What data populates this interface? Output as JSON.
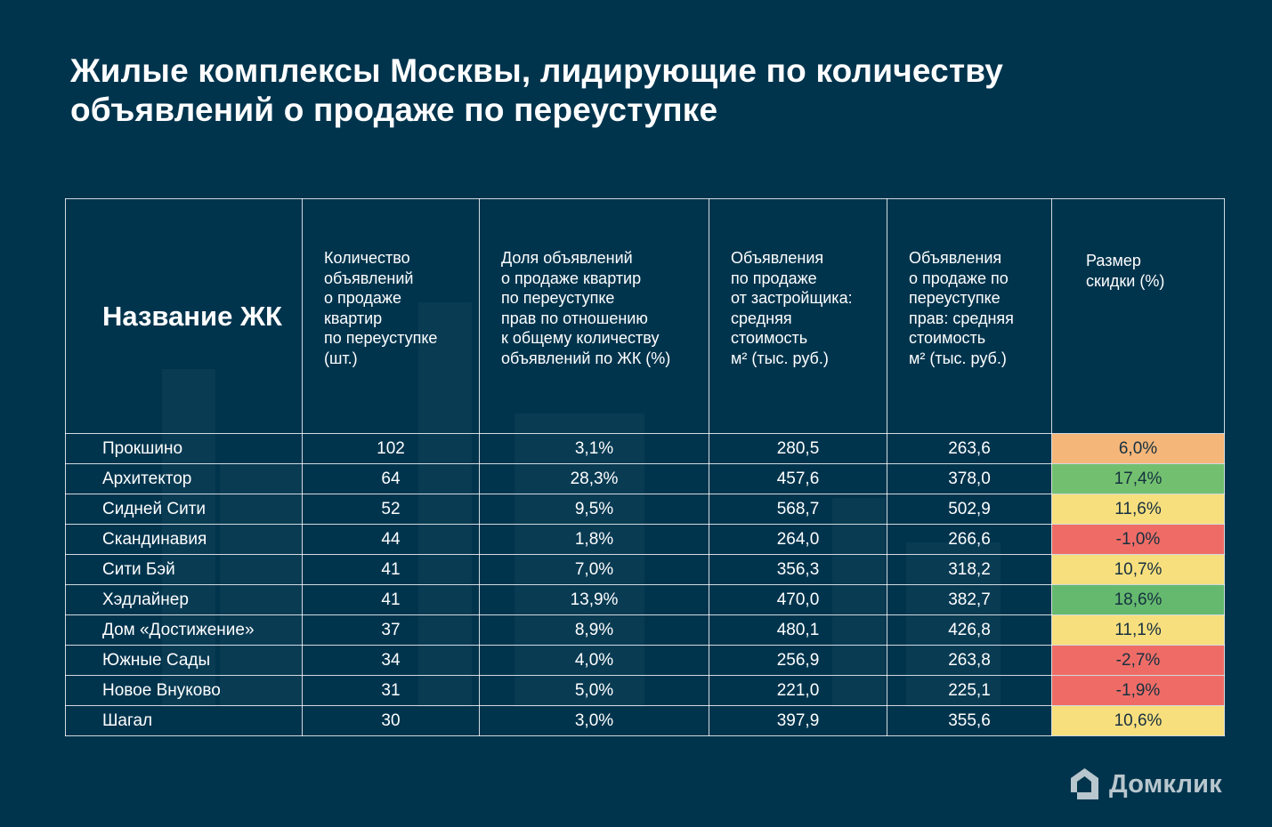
{
  "title": "Жилые комплексы Москвы, лидирующие по количеству объявлений о продаже по переуступке",
  "table": {
    "headers": {
      "name": "Название ЖК",
      "listings": "Количество\nобъявлений\nо продаже\nквартир\nпо переуступке\n(шт.)",
      "share": "Доля объявлений\nо продаже квартир\nпо переуступке\nправ по отношению\nк общему количеству\nобъявлений по ЖК (%)",
      "developer_price": "Объявления\nпо продаже\nот застройщика:\nсредняя\nстоимость\nм² (тыс. руб.)",
      "assignment_price": "Объявления\nо продаже по\nпереуступке\nправ: средняя\nстоимость\nм² (тыс. руб.)",
      "discount": "Размер\nскидки (%)"
    },
    "rows": [
      {
        "name": "Прокшино",
        "listings": "102",
        "share": "3,1%",
        "developer_price": "280,5",
        "assignment_price": "263,6",
        "discount": "6,0%",
        "discount_color": "#f5b679"
      },
      {
        "name": "Архитектор",
        "listings": "64",
        "share": "28,3%",
        "developer_price": "457,6",
        "assignment_price": "378,0",
        "discount": "17,4%",
        "discount_color": "#72c06f"
      },
      {
        "name": "Сидней Сити",
        "listings": "52",
        "share": "9,5%",
        "developer_price": "568,7",
        "assignment_price": "502,9",
        "discount": "11,6%",
        "discount_color": "#f8df7d"
      },
      {
        "name": "Скандинавия",
        "listings": "44",
        "share": "1,8%",
        "developer_price": "264,0",
        "assignment_price": "266,6",
        "discount": "-1,0%",
        "discount_color": "#ef6c66"
      },
      {
        "name": "Сити Бэй",
        "listings": "41",
        "share": "7,0%",
        "developer_price": "356,3",
        "assignment_price": "318,2",
        "discount": "10,7%",
        "discount_color": "#f8df7d"
      },
      {
        "name": "Хэдлайнер",
        "listings": "41",
        "share": "13,9%",
        "developer_price": "470,0",
        "assignment_price": "382,7",
        "discount": "18,6%",
        "discount_color": "#64b96e"
      },
      {
        "name": "Дом «Достижение»",
        "listings": "37",
        "share": "8,9%",
        "developer_price": "480,1",
        "assignment_price": "426,8",
        "discount": "11,1%",
        "discount_color": "#f8df7d"
      },
      {
        "name": "Южные Сады",
        "listings": "34",
        "share": "4,0%",
        "developer_price": "256,9",
        "assignment_price": "263,8",
        "discount": "-2,7%",
        "discount_color": "#ef6c66"
      },
      {
        "name": "Новое Внуково",
        "listings": "31",
        "share": "5,0%",
        "developer_price": "221,0",
        "assignment_price": "225,1",
        "discount": "-1,9%",
        "discount_color": "#ef6c66"
      },
      {
        "name": "Шагал",
        "listings": "30",
        "share": "3,0%",
        "developer_price": "397,9",
        "assignment_price": "355,6",
        "discount": "10,6%",
        "discount_color": "#f8df7d"
      }
    ]
  },
  "chart_data": {
    "type": "table",
    "title": "Жилые комплексы Москвы, лидирующие по количеству объявлений о продаже по переуступке",
    "columns": [
      "Название ЖК",
      "Количество объявлений о продаже квартир по переуступке (шт.)",
      "Доля объявлений о продаже квартир по переуступке прав по отношению к общему количеству объявлений по ЖК (%)",
      "Объявления по продаже от застройщика: средняя стоимость м² (тыс. руб.)",
      "Объявления о продаже по переуступке прав: средняя стоимость м² (тыс. руб.)",
      "Размер скидки (%)"
    ],
    "rows": [
      [
        "Прокшино",
        102,
        3.1,
        280.5,
        263.6,
        6.0
      ],
      [
        "Архитектор",
        64,
        28.3,
        457.6,
        378.0,
        17.4
      ],
      [
        "Сидней Сити",
        52,
        9.5,
        568.7,
        502.9,
        11.6
      ],
      [
        "Скандинавия",
        44,
        1.8,
        264.0,
        266.6,
        -1.0
      ],
      [
        "Сити Бэй",
        41,
        7.0,
        356.3,
        318.2,
        10.7
      ],
      [
        "Хэдлайнер",
        41,
        13.9,
        470.0,
        382.7,
        18.6
      ],
      [
        "Дом «Достижение»",
        37,
        8.9,
        480.1,
        426.8,
        11.1
      ],
      [
        "Южные Сады",
        34,
        4.0,
        256.9,
        263.8,
        -2.7
      ],
      [
        "Новое Внуково",
        31,
        5.0,
        221.0,
        225.1,
        -1.9
      ],
      [
        "Шагал",
        30,
        3.0,
        397.9,
        355.6,
        10.6
      ]
    ]
  },
  "logo": {
    "text": "Домклик",
    "icon": "house-logo-icon"
  },
  "colors": {
    "background": "#00344d",
    "orange": "#f5b679",
    "green": "#72c06f",
    "yellow": "#f8df7d",
    "red": "#ef6c66"
  }
}
